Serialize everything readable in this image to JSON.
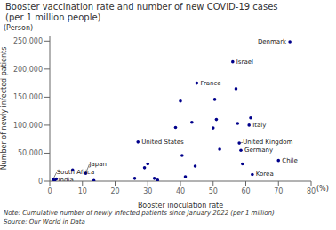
{
  "chart_data": {
    "type": "scatter",
    "title": "Booster vaccination rate and number of new COVID-19 cases",
    "subtitle": "(per 1 million people)",
    "xlabel": "Booster inoculation rate",
    "ylabel": "Number of newly infected patients",
    "x_unit": "(%)",
    "y_unit": "(Person)",
    "note": "Note: Cumulative number of newly infected patients since January 2022 (per 1 million)",
    "source": "Source: Our World in Data",
    "color": "#00008B",
    "xlim": [
      0,
      80
    ],
    "ylim": [
      0,
      260000
    ],
    "xticks": [
      0,
      10,
      20,
      30,
      40,
      50,
      60,
      70,
      80
    ],
    "yticks": [
      0,
      {
        "value": 50000,
        "label": "50,000"
      },
      {
        "value": 100000,
        "label": "100,000"
      },
      {
        "value": 150000,
        "label": "150,000"
      },
      {
        "value": 200000,
        "label": "200,000"
      },
      {
        "value": 250000,
        "label": "250,000"
      }
    ],
    "grid": false,
    "points": [
      {
        "x": 1.0,
        "y": 3000,
        "label": "South Africa"
      },
      {
        "x": 1.5,
        "y": 1500,
        "label": "India"
      },
      {
        "x": 2.0,
        "y": 4000
      },
      {
        "x": 7.0,
        "y": 20000
      },
      {
        "x": 11.0,
        "y": 14000,
        "label": "Japan"
      },
      {
        "x": 13.5,
        "y": 1000
      },
      {
        "x": 26.0,
        "y": 5000
      },
      {
        "x": 27.0,
        "y": 70000,
        "label": "United States"
      },
      {
        "x": 29.0,
        "y": 24000
      },
      {
        "x": 30.0,
        "y": 31000
      },
      {
        "x": 32.0,
        "y": 5000
      },
      {
        "x": 33.0,
        "y": 2000
      },
      {
        "x": 38.5,
        "y": 96000
      },
      {
        "x": 40.0,
        "y": 143000
      },
      {
        "x": 40.5,
        "y": 46000
      },
      {
        "x": 41.5,
        "y": 8000
      },
      {
        "x": 43.5,
        "y": 105000
      },
      {
        "x": 44.5,
        "y": 27000
      },
      {
        "x": 45.0,
        "y": 175000,
        "label": "France"
      },
      {
        "x": 50.0,
        "y": 95000
      },
      {
        "x": 50.5,
        "y": 146000
      },
      {
        "x": 51.0,
        "y": 110000
      },
      {
        "x": 52.0,
        "y": 57000
      },
      {
        "x": 56.0,
        "y": 213000,
        "label": "Israel"
      },
      {
        "x": 57.0,
        "y": 165000
      },
      {
        "x": 57.5,
        "y": 103000
      },
      {
        "x": 58.0,
        "y": 68000,
        "label": "United Kingdom"
      },
      {
        "x": 58.5,
        "y": 55000,
        "label": "Germany"
      },
      {
        "x": 59.0,
        "y": 31000
      },
      {
        "x": 61.0,
        "y": 100000,
        "label": "Italy"
      },
      {
        "x": 61.5,
        "y": 113000
      },
      {
        "x": 62.0,
        "y": 12000,
        "label": "Korea"
      },
      {
        "x": 70.0,
        "y": 37000,
        "label": "Chile"
      },
      {
        "x": 73.5,
        "y": 249000,
        "label": "Denmark"
      }
    ]
  }
}
